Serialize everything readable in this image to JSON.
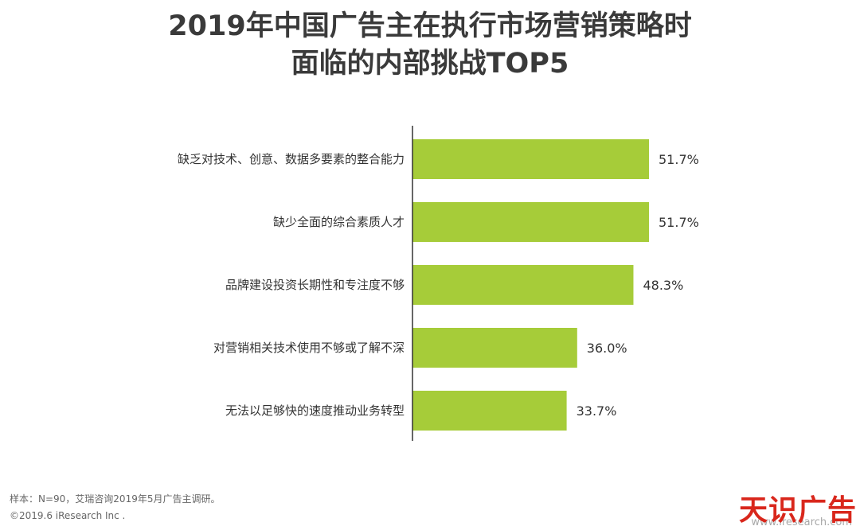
{
  "title": {
    "line1": "2019年中国广告主在执行市场营销策略时",
    "line2": "面临的内部挑战TOP5"
  },
  "colors": {
    "bar": "#a6cc39",
    "axis": "#333333",
    "label": "#333333",
    "watermark": "#d9271c"
  },
  "chart_data": {
    "type": "bar",
    "orientation": "horizontal",
    "title": "2019年中国广告主在执行市场营销策略时面临的内部挑战TOP5",
    "xlabel": "",
    "ylabel": "",
    "xlim": [
      0,
      100
    ],
    "categories": [
      "缺乏对技术、创意、数据多要素的整合能力",
      "缺少全面的综合素质人才",
      "品牌建设投资长期性和专注度不够",
      "对营销相关技术使用不够或了解不深",
      "无法以足够快的速度推动业务转型"
    ],
    "values": [
      51.7,
      51.7,
      48.3,
      36.0,
      33.7
    ],
    "value_labels": [
      "51.7%",
      "51.7%",
      "48.3%",
      "36.0%",
      "33.7%"
    ]
  },
  "footer": {
    "sample_note": "样本：N=90，艾瑞咨询2019年5月广告主调研。",
    "copyright": "©2019.6 iResearch Inc ."
  },
  "watermark": {
    "text": "天识广告",
    "url": "www.iresearch.com"
  }
}
